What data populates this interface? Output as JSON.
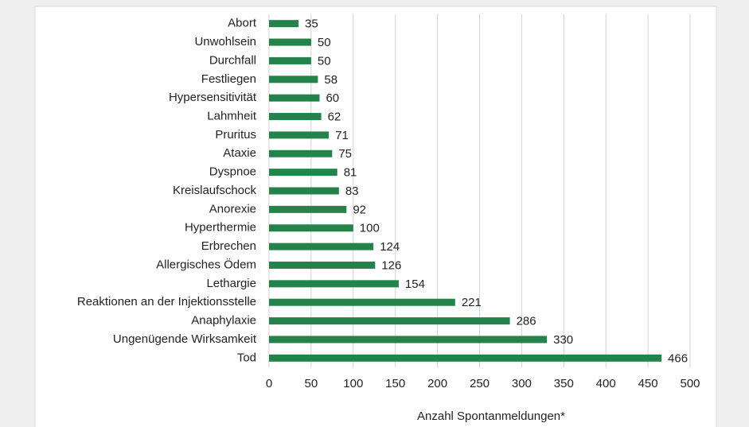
{
  "chart_data": {
    "type": "bar",
    "orientation": "horizontal",
    "categories": [
      "Abort",
      "Unwohlsein",
      "Durchfall",
      "Festliegen",
      "Hypersensitivität",
      "Lahmheit",
      "Pruritus",
      "Ataxie",
      "Dyspnoe",
      "Kreislaufschock",
      "Anorexie",
      "Hyperthermie",
      "Erbrechen",
      "Allergisches Ödem",
      "Lethargie",
      "Reaktionen an der Injektionsstelle",
      "Anaphylaxie",
      "Ungenügende Wirksamkeit",
      "Tod"
    ],
    "values": [
      35,
      50,
      50,
      58,
      60,
      62,
      71,
      75,
      81,
      83,
      92,
      100,
      124,
      126,
      154,
      221,
      286,
      330,
      466
    ],
    "color": "#23834a",
    "xlabel": "Anzahl Spontanmeldungen*",
    "xlim": [
      0,
      500
    ],
    "xticks": [
      0,
      50,
      100,
      150,
      200,
      250,
      300,
      350,
      400,
      450,
      500
    ],
    "grid": true
  }
}
